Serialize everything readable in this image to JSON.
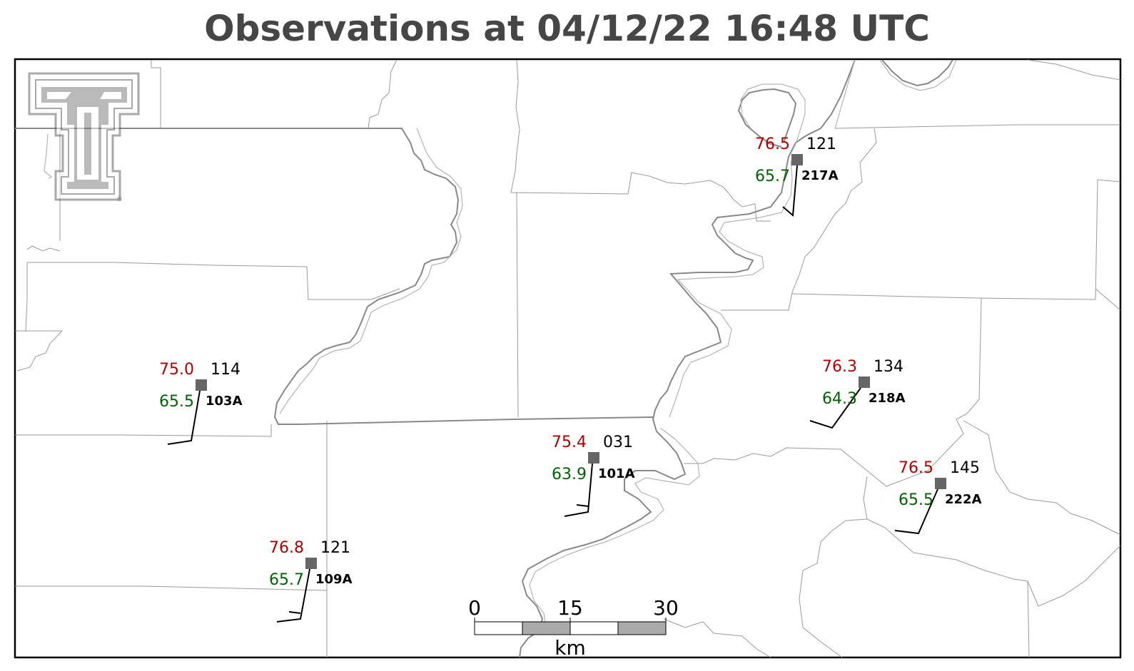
{
  "title": "Observations at 04/12/22 16:48 UTC",
  "colors": {
    "temperature": "#b00000",
    "dewpoint": "#006400",
    "pressure": "#000000",
    "station_marker": "#666666",
    "title": "#464646",
    "boundary": "#888888"
  },
  "logo": {
    "name": "texas-tech-double-t-logo",
    "mark": "®"
  },
  "stations": [
    {
      "id": "217A",
      "temp": "76.5",
      "dewpoint": "65.7",
      "pressure": "121"
    },
    {
      "id": "103A",
      "temp": "75.0",
      "dewpoint": "65.5",
      "pressure": "114"
    },
    {
      "id": "218A",
      "temp": "76.3",
      "dewpoint": "64.3",
      "pressure": "134"
    },
    {
      "id": "101A",
      "temp": "75.4",
      "dewpoint": "63.9",
      "pressure": "031"
    },
    {
      "id": "222A",
      "temp": "76.5",
      "dewpoint": "65.5",
      "pressure": "145"
    },
    {
      "id": "109A",
      "temp": "76.8",
      "dewpoint": "65.7",
      "pressure": "121"
    }
  ],
  "scale_bar": {
    "labels": [
      "0",
      "15",
      "30"
    ],
    "unit": "km"
  }
}
